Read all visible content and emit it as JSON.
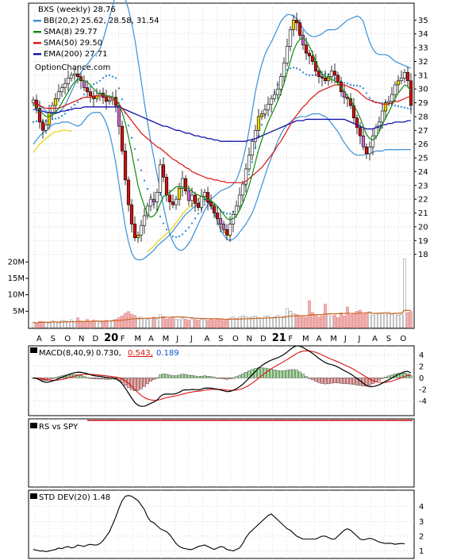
{
  "chart_data": [
    {
      "type": "candlestick",
      "panel": "price",
      "legend": [
        {
          "text": "BXS (weekly) 28.76",
          "color": "#000000"
        },
        {
          "text": "BB(20,2) 25.62, 28.58, 31.54",
          "color": "#3a8fd6"
        },
        {
          "text": "SMA(8) 29.77",
          "color": "#118811"
        },
        {
          "text": "SMA(50) 29.50",
          "color": "#dd1111"
        },
        {
          "text": "EMA(200) 27.71",
          "color": "#1111aa"
        }
      ],
      "watermark": "OptionChance.com",
      "ylim": [
        17,
        36
      ],
      "y_ticks": [
        18,
        19,
        20,
        21,
        22,
        23,
        24,
        25,
        26,
        27,
        28,
        29,
        30,
        31,
        32,
        33,
        34,
        35
      ],
      "volume_ticks": [
        "5M",
        "10M",
        "15M",
        "20M"
      ],
      "volume_max": 22,
      "x_labels": [
        "A",
        "S",
        "O",
        "N",
        "D",
        "20",
        "F",
        "M",
        "A",
        "M",
        "J",
        "J",
        "A",
        "S",
        "O",
        "N",
        "D",
        "21",
        "F",
        "M",
        "A",
        "M",
        "J",
        "J",
        "A",
        "S",
        "O"
      ],
      "bold_labels": [
        "20",
        "21"
      ],
      "closes": [
        29.2,
        28.6,
        27.6,
        27.0,
        27.4,
        28.3,
        28.8,
        29.3,
        29.8,
        30.1,
        30.4,
        30.8,
        31.0,
        31.1,
        30.9,
        30.6,
        30.1,
        29.8,
        29.5,
        29.3,
        29.5,
        29.7,
        29.4,
        29.1,
        29.2,
        29.4,
        28.8,
        27.3,
        25.5,
        23.4,
        21.6,
        20.2,
        19.2,
        19.4,
        20.1,
        20.8,
        21.5,
        22.0,
        21.8,
        22.5,
        24.5,
        23.6,
        22.3,
        21.8,
        21.6,
        22.0,
        22.8,
        23.5,
        22.6,
        21.9,
        22.3,
        21.7,
        21.4,
        22.2,
        22.5,
        21.8,
        21.5,
        21.0,
        20.6,
        20.2,
        19.8,
        19.4,
        20.2,
        20.9,
        21.5,
        22.3,
        23.1,
        24.2,
        25.2,
        26.2,
        27.0,
        28.0,
        28.2,
        28.5,
        28.9,
        29.3,
        29.6,
        30.0,
        30.9,
        31.9,
        33.1,
        34.3,
        35.0,
        34.8,
        33.9,
        33.2,
        32.6,
        32.4,
        32.0,
        31.3,
        30.9,
        30.8,
        30.6,
        30.9,
        31.3,
        31.0,
        30.5,
        29.8,
        29.4,
        29.3,
        28.8,
        27.9,
        27.2,
        26.6,
        25.8,
        25.3,
        25.8,
        26.6,
        27.2,
        27.6,
        28.4,
        29.0,
        29.1,
        29.6,
        30.3,
        30.6,
        30.8,
        31.2,
        30.6,
        28.8
      ],
      "sma8": [
        28.9,
        28.7,
        28.5,
        28.2,
        28.0,
        28.0,
        28.1,
        28.3,
        28.6,
        29.0,
        29.4,
        29.8,
        30.2,
        30.5,
        30.7,
        30.7,
        30.6,
        30.5,
        30.3,
        30.0,
        29.8,
        29.6,
        29.6,
        29.5,
        29.5,
        29.4,
        29.3,
        28.9,
        28.3,
        27.5,
        26.5,
        25.4,
        24.2,
        23.0,
        22.2,
        21.5,
        20.9,
        20.7,
        20.8,
        21.1,
        21.7,
        22.2,
        22.3,
        22.5,
        22.7,
        22.9,
        22.9,
        22.9,
        22.8,
        22.8,
        22.6,
        22.4,
        22.3,
        22.2,
        22.1,
        22.0,
        21.9,
        21.7,
        21.5,
        21.2,
        20.9,
        20.6,
        20.5,
        20.6,
        20.8,
        21.2,
        21.7,
        22.3,
        23.0,
        23.8,
        24.7,
        25.6,
        26.3,
        27.0,
        27.6,
        28.1,
        28.6,
        29.1,
        29.7,
        30.4,
        31.2,
        32.0,
        32.8,
        33.3,
        33.6,
        33.7,
        33.5,
        33.1,
        32.6,
        32.0,
        31.5,
        31.1,
        30.9,
        30.8,
        30.7,
        30.6,
        30.4,
        30.1,
        29.8,
        29.5,
        29.2,
        28.8,
        28.4,
        27.9,
        27.3,
        26.7,
        26.4,
        26.3,
        26.5,
        26.9,
        27.4,
        27.9,
        28.3,
        28.8,
        29.3,
        29.7,
        30.0,
        30.3,
        30.2,
        29.8
      ],
      "sma50": [
        29.0,
        28.9,
        28.8,
        28.7,
        28.6,
        28.6,
        28.6,
        28.6,
        28.6,
        28.7,
        28.8,
        28.9,
        29.0,
        29.1,
        29.2,
        29.3,
        29.4,
        29.4,
        29.4,
        29.5,
        29.5,
        29.5,
        29.5,
        29.5,
        29.4,
        29.3,
        29.1,
        28.9,
        28.6,
        28.3,
        28.0,
        27.7,
        27.4,
        27.1,
        26.8,
        26.6,
        26.4,
        26.2,
        26.0,
        25.8,
        25.7,
        25.5,
        25.3,
        25.1,
        24.9,
        24.8,
        24.6,
        24.5,
        24.3,
        24.2,
        24.0,
        23.9,
        23.8,
        23.7,
        23.6,
        23.5,
        23.5,
        23.4,
        23.4,
        23.3,
        23.3,
        23.2,
        23.2,
        23.2,
        23.2,
        23.2,
        23.2,
        23.3,
        23.5,
        23.7,
        23.9,
        24.1,
        24.3,
        24.6,
        24.9,
        25.2,
        25.5,
        25.9,
        26.2,
        26.6,
        27.0,
        27.4,
        27.8,
        28.1,
        28.4,
        28.7,
        28.9,
        29.2,
        29.4,
        29.6,
        29.8,
        29.9,
        30.0,
        30.1,
        30.2,
        30.3,
        30.3,
        30.3,
        30.3,
        30.2,
        30.1,
        30.0,
        29.9,
        29.7,
        29.5,
        29.3,
        29.2,
        29.1,
        29.0,
        29.0,
        28.9,
        28.9,
        28.9,
        29.0,
        29.1,
        29.1,
        29.2,
        29.3,
        29.4,
        29.5
      ],
      "ema200": [
        28.5,
        28.5,
        28.4,
        28.4,
        28.3,
        28.3,
        28.3,
        28.3,
        28.3,
        28.4,
        28.4,
        28.5,
        28.5,
        28.6,
        28.6,
        28.6,
        28.7,
        28.7,
        28.7,
        28.7,
        28.7,
        28.7,
        28.7,
        28.7,
        28.7,
        28.7,
        28.7,
        28.7,
        28.6,
        28.5,
        28.4,
        28.3,
        28.2,
        28.1,
        28.0,
        27.9,
        27.8,
        27.7,
        27.6,
        27.5,
        27.4,
        27.3,
        27.3,
        27.2,
        27.1,
        27.0,
        27.0,
        26.9,
        26.8,
        26.8,
        26.7,
        26.6,
        26.6,
        26.5,
        26.5,
        26.4,
        26.4,
        26.3,
        26.3,
        26.2,
        26.2,
        26.2,
        26.2,
        26.2,
        26.2,
        26.2,
        26.2,
        26.2,
        26.3,
        26.3,
        26.4,
        26.5,
        26.6,
        26.7,
        26.8,
        26.9,
        27.0,
        27.1,
        27.2,
        27.3,
        27.4,
        27.5,
        27.6,
        27.7,
        27.7,
        27.7,
        27.8,
        27.8,
        27.8,
        27.8,
        27.8,
        27.8,
        27.8,
        27.8,
        27.8,
        27.8,
        27.8,
        27.8,
        27.8,
        27.7,
        27.6,
        27.5,
        27.4,
        27.3,
        27.2,
        27.1,
        27.1,
        27.1,
        27.2,
        27.3,
        27.4,
        27.4,
        27.5,
        27.5,
        27.6,
        27.6,
        27.6,
        27.6,
        27.7,
        27.7
      ],
      "bb_upper": [
        29.2,
        29.0,
        28.8,
        28.6,
        28.4,
        28.2,
        28.2,
        28.2,
        28.3,
        28.5,
        28.8,
        29.3,
        29.8,
        30.3,
        30.8,
        31.2,
        31.5,
        31.8,
        32.1,
        32.4,
        32.6,
        32.9,
        33.6,
        34.4,
        35.2,
        36.0,
        37.0,
        37.0,
        37.0,
        36.5,
        35.8,
        34.8,
        33.6,
        32.1,
        30.6,
        29.0,
        27.6,
        26.2,
        25.0,
        23.8,
        22.7,
        21.5,
        20.4,
        19.5,
        18.9,
        18.5,
        18.3,
        18.3,
        18.5,
        18.8,
        19.2,
        19.7,
        20.2,
        20.7,
        21.2,
        21.6,
        22.0,
        22.2,
        22.4,
        22.6,
        22.7,
        22.8,
        22.9,
        23.1,
        23.4,
        24.0,
        24.8,
        25.8,
        27.0,
        28.4,
        29.8,
        30.9,
        31.8,
        32.5,
        33.0,
        33.4,
        33.9,
        34.4,
        34.9,
        35.2,
        35.4,
        35.4,
        35.3,
        35.1,
        34.8,
        34.4,
        34.1,
        33.9,
        33.8,
        33.8,
        33.9,
        34.0,
        34.2,
        34.3,
        34.3,
        34.3,
        34.4,
        34.6,
        34.8,
        35.0,
        35.1,
        35.2,
        35.3,
        35.2,
        34.9,
        34.1,
        33.4,
        32.9,
        32.6,
        32.5,
        32.5,
        32.5,
        32.4,
        32.2,
        32.0,
        31.9,
        31.8,
        31.7,
        31.6,
        31.5
      ],
      "bb_lower": [
        26.0,
        26.3,
        26.6,
        26.8,
        27.0,
        27.2,
        27.4,
        27.5,
        27.5,
        27.6,
        27.6,
        27.6,
        27.5,
        27.4,
        27.3,
        27.4,
        27.7,
        28.0,
        28.2,
        28.3,
        28.3,
        28.3,
        28.0,
        27.5,
        26.8,
        25.8,
        24.6,
        23.1,
        21.5,
        20.0,
        18.9,
        18.1,
        17.7,
        17.6,
        17.6,
        17.7,
        17.9,
        18.1,
        18.3,
        18.6,
        18.8,
        19.0,
        19.2,
        19.4,
        19.7,
        20.0,
        20.3,
        20.6,
        20.9,
        21.1,
        21.3,
        21.5,
        21.7,
        21.9,
        22.0,
        21.9,
        21.5,
        21.0,
        20.4,
        19.8,
        19.4,
        19.1,
        19.0,
        19.1,
        19.3,
        19.6,
        19.9,
        20.2,
        20.6,
        21.0,
        21.6,
        22.3,
        23.0,
        23.7,
        24.4,
        25.0,
        25.6,
        26.2,
        26.7,
        27.1,
        27.4,
        27.6,
        27.8,
        27.9,
        28.0,
        28.0,
        28.0,
        28.1,
        28.2,
        28.2,
        28.2,
        28.1,
        28.0,
        27.8,
        27.5,
        27.2,
        26.9,
        26.5,
        26.1,
        25.8,
        25.5,
        25.3,
        25.2,
        25.2,
        25.2,
        25.3,
        25.3,
        25.4,
        25.5,
        25.5,
        25.5,
        25.6,
        25.6,
        25.6,
        25.6,
        25.6,
        25.6,
        25.6,
        25.6,
        25.6
      ],
      "volume": [
        1.6,
        1.2,
        1.9,
        1.8,
        1.7,
        1.4,
        2.1,
        1.8,
        1.5,
        2.2,
        2.0,
        1.8,
        2.4,
        1.7,
        3.0,
        2.0,
        1.6,
        2.5,
        1.9,
        2.3,
        2.1,
        1.7,
        1.9,
        2.2,
        2.0,
        2.3,
        2.6,
        3.1,
        3.6,
        4.4,
        4.9,
        4.1,
        3.7,
        3.0,
        3.2,
        2.8,
        2.5,
        2.9,
        3.2,
        2.7,
        3.9,
        3.4,
        2.6,
        2.8,
        3.0,
        2.5,
        2.4,
        2.9,
        2.6,
        2.3,
        2.7,
        2.5,
        2.3,
        2.6,
        2.4,
        2.2,
        2.5,
        2.3,
        2.8,
        2.4,
        2.2,
        2.6,
        2.9,
        3.3,
        2.8,
        3.2,
        3.6,
        3.4,
        3.0,
        3.3,
        3.5,
        3.1,
        2.9,
        3.4,
        3.6,
        3.0,
        3.3,
        3.7,
        3.2,
        3.5,
        5.8,
        5.0,
        4.3,
        4.0,
        3.6,
        3.3,
        3.1,
        8.2,
        4.6,
        3.8,
        3.2,
        3.6,
        7.2,
        4.1,
        3.4,
        3.8,
        3.1,
        4.5,
        3.6,
        6.3,
        4.0,
        4.4,
        5.0,
        5.3,
        4.1,
        4.6,
        4.8,
        3.7,
        4.2,
        4.5,
        4.3,
        3.9,
        4.7,
        4.0,
        4.4,
        3.8,
        4.1,
        21.0,
        4.6,
        4.9
      ]
    },
    {
      "type": "line",
      "panel": "macd",
      "label": "MACD(8,40,9)",
      "values_text": {
        "macd": "0.730,",
        "signal": "0.543,",
        "histogram": "0.189"
      },
      "colors": {
        "macd": "#000000",
        "signal": "#dd1111",
        "histogram": "#1155cc"
      },
      "ylim": [
        -6,
        5
      ],
      "y_ticks": [
        -4,
        -2,
        0,
        2,
        4
      ]
    },
    {
      "type": "line",
      "panel": "rs",
      "label": "RS vs SPY"
    },
    {
      "type": "line",
      "panel": "stddev",
      "label": "STD DEV(20) 1.48",
      "ylim": [
        0.6,
        5
      ],
      "y_ticks": [
        1,
        2,
        3,
        4
      ],
      "values": [
        1.1,
        1.05,
        1.0,
        1.0,
        0.95,
        1.0,
        1.05,
        1.1,
        1.2,
        1.15,
        1.25,
        1.3,
        1.2,
        1.25,
        1.4,
        1.35,
        1.3,
        1.4,
        1.45,
        1.4,
        1.4,
        1.5,
        1.7,
        2.0,
        2.3,
        2.8,
        3.3,
        3.9,
        4.4,
        4.7,
        4.75,
        4.7,
        4.55,
        4.4,
        4.1,
        3.8,
        3.3,
        3.0,
        2.9,
        2.7,
        2.5,
        2.4,
        2.3,
        2.1,
        1.8,
        1.5,
        1.3,
        1.2,
        1.15,
        1.1,
        1.1,
        1.2,
        1.3,
        1.35,
        1.4,
        1.3,
        1.2,
        1.1,
        1.2,
        1.3,
        1.25,
        1.1,
        1.05,
        1.0,
        1.1,
        1.2,
        1.5,
        1.9,
        2.2,
        2.4,
        2.6,
        2.8,
        3.0,
        3.2,
        3.4,
        3.5,
        3.3,
        3.1,
        2.9,
        2.7,
        2.5,
        2.4,
        2.2,
        2.0,
        1.9,
        1.8,
        1.8,
        1.8,
        1.8,
        1.8,
        1.9,
        2.0,
        2.0,
        1.9,
        1.8,
        1.8,
        2.0,
        2.2,
        2.4,
        2.5,
        2.4,
        2.2,
        2.0,
        1.8,
        1.75,
        1.8,
        1.85,
        1.8,
        1.7,
        1.6,
        1.55,
        1.5,
        1.52,
        1.5,
        1.45,
        1.48,
        1.5,
        1.48
      ]
    }
  ]
}
